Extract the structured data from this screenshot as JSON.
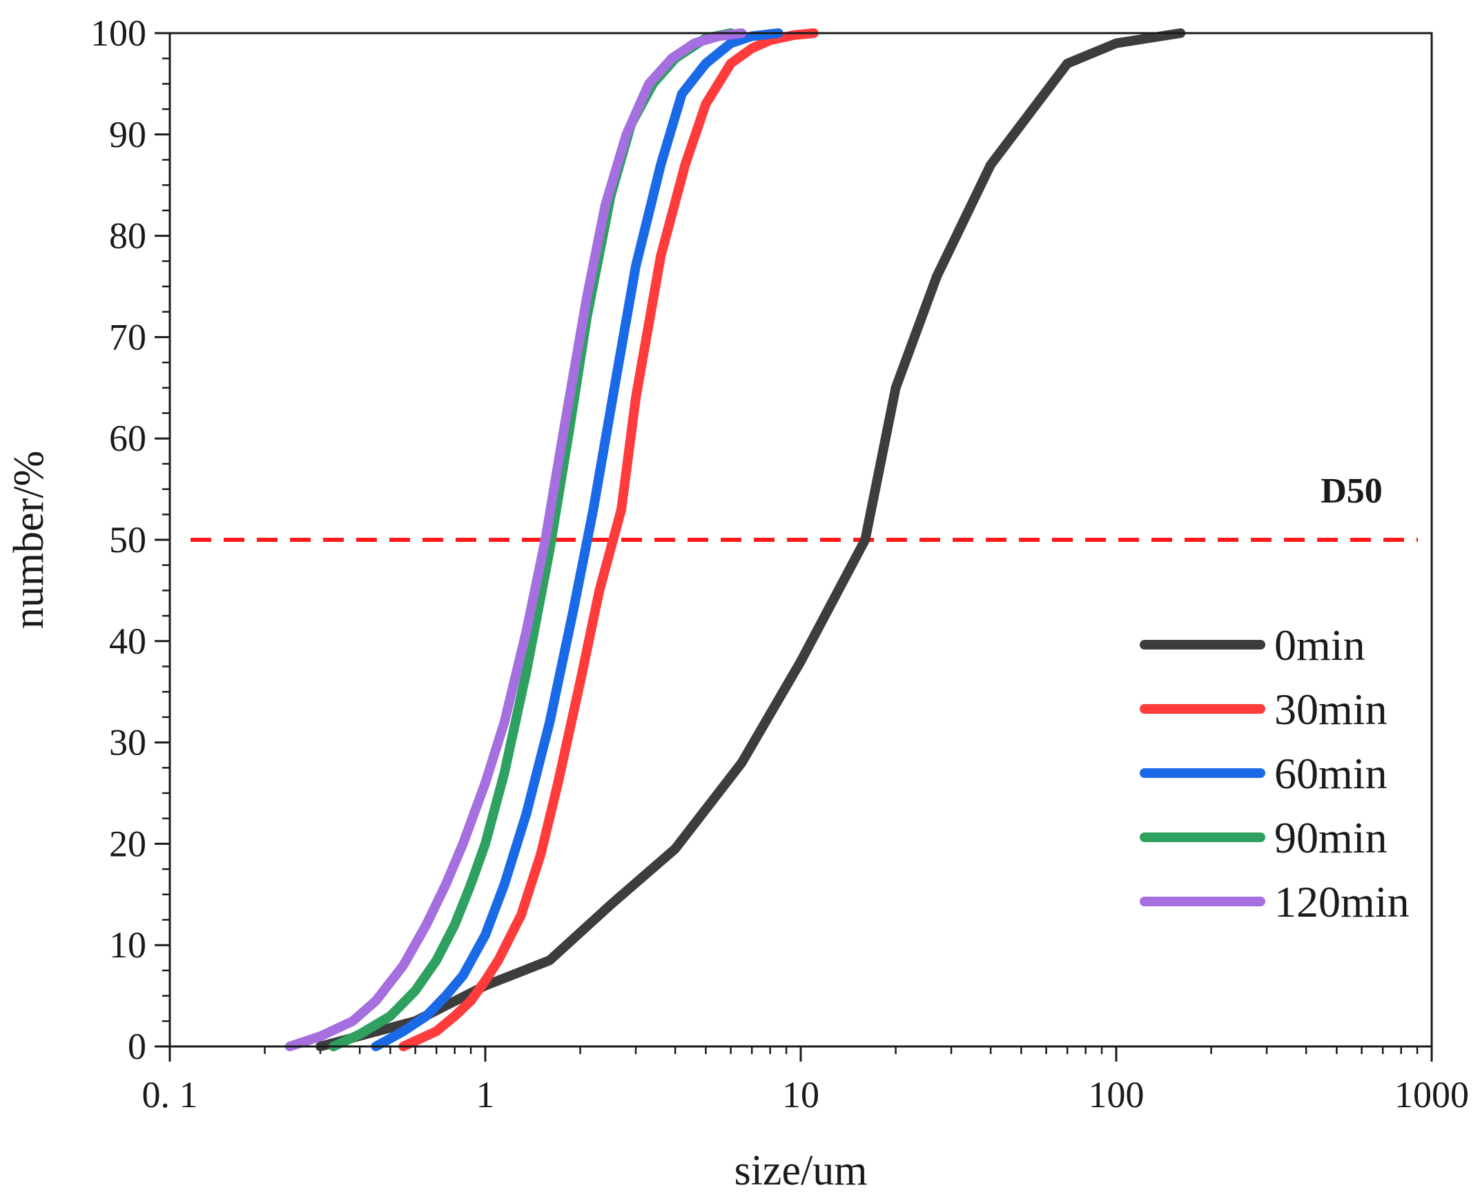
{
  "chart_data": {
    "type": "line",
    "title": "",
    "xlabel": "size/um",
    "ylabel": "number/%",
    "xscale": "log",
    "xlim": [
      0.1,
      1000
    ],
    "ylim": [
      0,
      100
    ],
    "x_ticks": [
      {
        "value": 0.1,
        "label": "0. 1"
      },
      {
        "value": 1,
        "label": "1"
      },
      {
        "value": 10,
        "label": "10"
      },
      {
        "value": 100,
        "label": "100"
      },
      {
        "value": 1000,
        "label": "1000"
      }
    ],
    "y_ticks": [
      {
        "value": 0,
        "label": "0"
      },
      {
        "value": 10,
        "label": "10"
      },
      {
        "value": 20,
        "label": "20"
      },
      {
        "value": 30,
        "label": "30"
      },
      {
        "value": 40,
        "label": "40"
      },
      {
        "value": 50,
        "label": "50"
      },
      {
        "value": 60,
        "label": "60"
      },
      {
        "value": 70,
        "label": "70"
      },
      {
        "value": 80,
        "label": "80"
      },
      {
        "value": 90,
        "label": "90"
      },
      {
        "value": 100,
        "label": "100"
      }
    ],
    "legend_position": "lower-right",
    "reference_line": {
      "y": 50,
      "label": "D50",
      "color": "#ff1a1a",
      "style": "dashed"
    },
    "series": [
      {
        "name": "0min",
        "color": "#3d3d3d",
        "x": [
          0.3,
          0.6,
          1.0,
          1.6,
          2.5,
          4.0,
          6.5,
          10,
          16,
          20,
          27,
          40,
          70,
          100,
          160
        ],
        "y": [
          0,
          2.5,
          6,
          8.5,
          14,
          19.5,
          28,
          38,
          50,
          65,
          76,
          87,
          97,
          99,
          100
        ]
      },
      {
        "name": "30min",
        "color": "#ff3b3b",
        "x": [
          0.55,
          0.7,
          0.8,
          0.9,
          1.0,
          1.1,
          1.3,
          1.5,
          1.7,
          2.0,
          2.3,
          2.7,
          3.0,
          3.6,
          4.3,
          5.0,
          6.0,
          7.0,
          8.0,
          9.5,
          11
        ],
        "y": [
          0,
          1.5,
          3,
          4.5,
          6.5,
          8.5,
          13,
          19,
          26,
          36,
          45,
          53,
          64,
          78,
          87,
          93,
          97,
          98.5,
          99.3,
          99.8,
          100
        ]
      },
      {
        "name": "60min",
        "color": "#1a6ae8",
        "x": [
          0.45,
          0.55,
          0.65,
          0.75,
          0.85,
          1.0,
          1.15,
          1.35,
          1.6,
          1.9,
          2.2,
          2.6,
          3.0,
          3.6,
          4.2,
          5.0,
          6.0,
          7.0,
          8.5
        ],
        "y": [
          0,
          1.5,
          3,
          5,
          7,
          11,
          16,
          23,
          32,
          43,
          53,
          66,
          77,
          87,
          94,
          97,
          99,
          99.7,
          100
        ]
      },
      {
        "name": "90min",
        "color": "#2ea060",
        "x": [
          0.33,
          0.4,
          0.5,
          0.6,
          0.7,
          0.8,
          0.9,
          1.0,
          1.15,
          1.35,
          1.6,
          1.85,
          2.1,
          2.5,
          2.9,
          3.4,
          4.0,
          5.0,
          6.0
        ],
        "y": [
          0,
          1.2,
          3,
          5.5,
          8.5,
          12,
          16,
          20,
          27,
          37,
          49,
          61,
          72,
          84,
          91,
          95,
          97.5,
          99.5,
          100
        ]
      },
      {
        "name": "120min",
        "color": "#a56fe0",
        "x": [
          0.24,
          0.3,
          0.38,
          0.45,
          0.55,
          0.65,
          0.75,
          0.85,
          1.0,
          1.15,
          1.35,
          1.55,
          1.8,
          2.1,
          2.4,
          2.8,
          3.3,
          3.9,
          4.6,
          5.5,
          6.5
        ],
        "y": [
          0,
          1,
          2.5,
          4.5,
          8,
          12,
          16,
          20,
          26,
          32,
          41,
          50,
          62,
          74,
          83,
          90,
          95,
          97.5,
          99,
          99.7,
          100
        ]
      }
    ]
  }
}
